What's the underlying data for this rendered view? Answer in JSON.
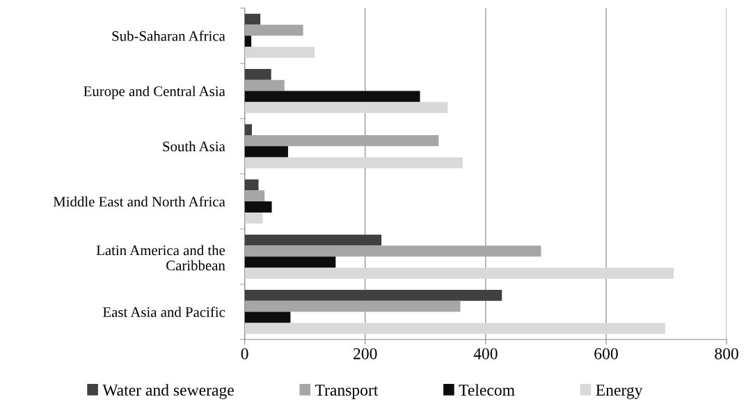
{
  "chart_data": {
    "type": "bar",
    "orientation": "horizontal",
    "categories": [
      "Sub-Saharan Africa",
      "Europe and Central Asia",
      "South Asia",
      "Middle East and North Africa",
      "Latin America and the\nCaribbean",
      "East Asia and Pacific"
    ],
    "series": [
      {
        "name": "Water and sewerage",
        "color": "#404040",
        "values": [
          26,
          44,
          12,
          23,
          227,
          427
        ]
      },
      {
        "name": "Transport",
        "color": "#a6a6a6",
        "values": [
          97,
          66,
          322,
          33,
          492,
          358
        ]
      },
      {
        "name": "Telecom",
        "color": "#0d0d0d",
        "values": [
          11,
          291,
          72,
          45,
          151,
          76
        ]
      },
      {
        "name": "Energy",
        "color": "#d9d9d9",
        "values": [
          116,
          337,
          362,
          30,
          712,
          698
        ]
      }
    ],
    "xlim": [
      0,
      800
    ],
    "xticks": [
      0,
      200,
      400,
      600,
      800
    ],
    "grid": "x",
    "legend": "bottom"
  }
}
